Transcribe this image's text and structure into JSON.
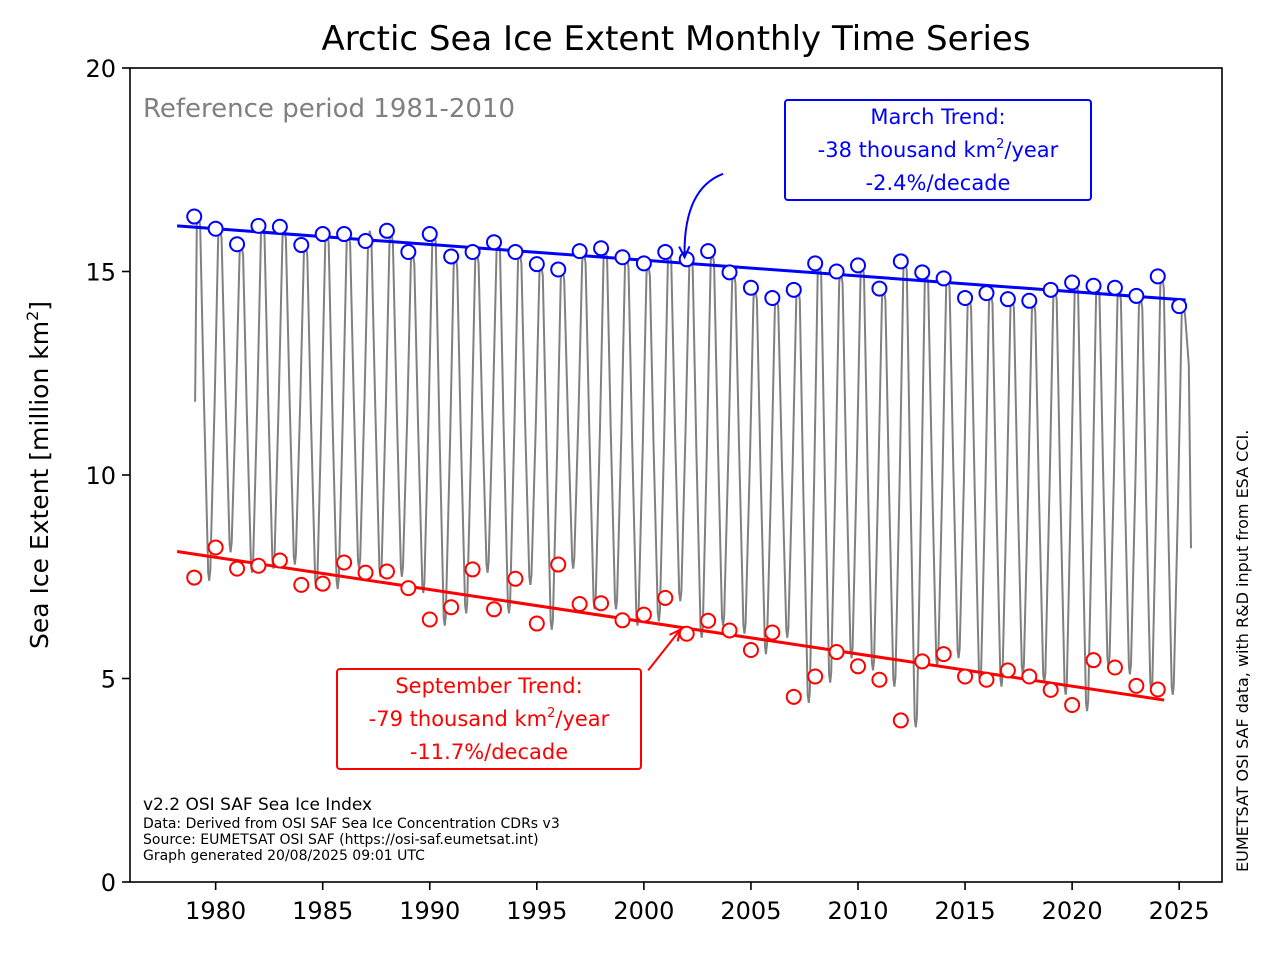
{
  "chart_data": {
    "type": "line",
    "title": "Arctic Sea Ice Extent Monthly Time Series",
    "ylabel": "Sea Ice Extent [million km",
    "ylabel_sup": "2",
    "ylabel_end": "]",
    "xlim": [
      1976,
      2027
    ],
    "ylim": [
      0,
      20
    ],
    "x_ticks": [
      1980,
      1985,
      1990,
      1995,
      2000,
      2005,
      2010,
      2015,
      2020,
      2025
    ],
    "y_ticks": [
      0,
      5,
      10,
      15,
      20
    ],
    "grid": false,
    "reference_text": "Reference period 1981-2010",
    "side_text": "EUMETSAT OSI SAF data, with R&D input from ESA CCI.",
    "footer": {
      "line1": "v2.2 OSI SAF Sea Ice Index",
      "line2": "Data: Derived from OSI SAF Sea Ice Concentration CDRs v3",
      "line3": "Source: EUMETSAT OSI SAF (https://osi-saf.eumetsat.int)",
      "line4": "Graph generated 20/08/2025 09:01 UTC"
    },
    "colors": {
      "monthly": "#808080",
      "march": "#0000ff",
      "september": "#ff0000"
    },
    "series": [
      {
        "name": "March",
        "marker": "open-circle",
        "x": [
          1979,
          1980,
          1981,
          1982,
          1983,
          1984,
          1985,
          1986,
          1987,
          1988,
          1989,
          1990,
          1991,
          1992,
          1993,
          1994,
          1995,
          1996,
          1997,
          1998,
          1999,
          2000,
          2001,
          2002,
          2003,
          2004,
          2005,
          2006,
          2007,
          2008,
          2009,
          2010,
          2011,
          2012,
          2013,
          2014,
          2015,
          2016,
          2017,
          2018,
          2019,
          2020,
          2021,
          2022,
          2023,
          2024,
          2025
        ],
        "values": [
          16.35,
          16.05,
          15.67,
          16.12,
          16.1,
          15.65,
          15.92,
          15.92,
          15.75,
          16.0,
          15.48,
          15.92,
          15.37,
          15.48,
          15.72,
          15.48,
          15.18,
          15.05,
          15.5,
          15.57,
          15.35,
          15.2,
          15.48,
          15.3,
          15.5,
          14.98,
          14.6,
          14.35,
          14.55,
          15.2,
          15.0,
          15.15,
          14.58,
          15.25,
          14.98,
          14.83,
          14.35,
          14.47,
          14.32,
          14.28,
          14.55,
          14.73,
          14.65,
          14.6,
          14.4,
          14.88,
          14.15
        ]
      },
      {
        "name": "September",
        "marker": "open-circle",
        "x": [
          1979,
          1980,
          1981,
          1982,
          1983,
          1984,
          1985,
          1986,
          1987,
          1988,
          1989,
          1990,
          1991,
          1992,
          1993,
          1994,
          1995,
          1996,
          1997,
          1998,
          1999,
          2000,
          2001,
          2002,
          2003,
          2004,
          2005,
          2006,
          2007,
          2008,
          2009,
          2010,
          2011,
          2012,
          2013,
          2014,
          2015,
          2016,
          2017,
          2018,
          2019,
          2020,
          2021,
          2022,
          2023,
          2024
        ],
        "values": [
          7.48,
          8.22,
          7.7,
          7.77,
          7.9,
          7.3,
          7.33,
          7.85,
          7.6,
          7.63,
          7.22,
          6.45,
          6.75,
          7.68,
          6.7,
          7.45,
          6.35,
          7.8,
          6.83,
          6.85,
          6.43,
          6.57,
          6.98,
          6.1,
          6.42,
          6.18,
          5.7,
          6.13,
          4.55,
          5.05,
          5.65,
          5.3,
          4.97,
          3.97,
          5.42,
          5.6,
          5.05,
          4.97,
          5.2,
          5.05,
          4.72,
          4.35,
          5.45,
          5.27,
          4.82,
          4.73
        ]
      },
      {
        "name": "Monthly extent",
        "x_start": 1979.04,
        "annual_max": [
          16.4,
          16.1,
          15.7,
          16.2,
          16.1,
          15.7,
          16.0,
          16.0,
          16.0,
          16.0,
          15.5,
          16.0,
          15.4,
          15.5,
          15.8,
          15.5,
          15.2,
          15.1,
          15.5,
          15.6,
          15.4,
          15.2,
          15.5,
          15.4,
          15.5,
          15.0,
          14.6,
          14.4,
          14.6,
          15.2,
          15.0,
          15.2,
          14.6,
          15.3,
          15.0,
          14.9,
          14.4,
          14.5,
          14.4,
          14.3,
          14.6,
          14.8,
          14.7,
          14.6,
          14.4,
          14.9,
          14.2
        ],
        "annual_min": [
          7.4,
          8.1,
          7.6,
          7.7,
          7.8,
          7.2,
          7.2,
          7.7,
          7.5,
          7.5,
          7.1,
          6.3,
          6.6,
          7.6,
          6.6,
          7.3,
          6.2,
          7.7,
          6.7,
          6.7,
          6.3,
          6.4,
          6.9,
          6.0,
          6.3,
          6.1,
          5.6,
          6.0,
          4.4,
          4.9,
          5.5,
          5.2,
          4.8,
          3.8,
          5.3,
          5.5,
          4.9,
          4.8,
          5.1,
          4.9,
          4.6,
          4.2,
          5.3,
          5.1,
          4.7,
          4.6
        ],
        "start_value": 11.8,
        "end_value": 8.2
      }
    ],
    "trends": [
      {
        "name": "March Trend",
        "x": [
          1978.2,
          2025.3
        ],
        "values": [
          16.12,
          14.3
        ],
        "label_line1": "March Trend:",
        "label_line2": "-38 thousand km",
        "label_sup": "2",
        "label_line2_end": "/year",
        "label_line3": "-2.4%/decade",
        "arrow_from": [
          2003.7,
          17.4
        ],
        "arrow_to": [
          2001.9,
          15.35
        ]
      },
      {
        "name": "September Trend",
        "x": [
          1978.2,
          2024.3
        ],
        "values": [
          8.12,
          4.47
        ],
        "label_line1": "September Trend:",
        "label_line2": "-79 thousand km",
        "label_sup": "2",
        "label_line2_end": "/year",
        "label_line3": "-11.7%/decade",
        "arrow_from": [
          2000.2,
          5.2
        ],
        "arrow_to": [
          2001.7,
          6.2
        ]
      }
    ]
  }
}
